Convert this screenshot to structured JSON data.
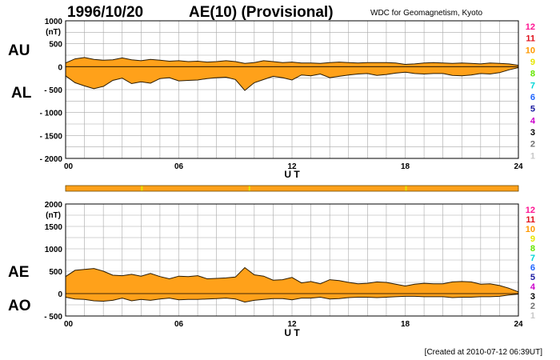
{
  "header": {
    "date": "1996/10/20",
    "title": "AE(10) (Provisional)",
    "source": "WDC for Geomagnetism, Kyoto"
  },
  "footer": {
    "created": "[Created at 2010-07-12 06:39UT]"
  },
  "colors": {
    "fill": "#ffa11a",
    "line": "#2a1a00",
    "grid": "#a8a8a8",
    "bar": "#ffa11a"
  },
  "legend_items": [
    {
      "label": "12",
      "color": "#ff1493"
    },
    {
      "label": "11",
      "color": "#e0101a"
    },
    {
      "label": "10",
      "color": "#ff9900"
    },
    {
      "label": "9",
      "color": "#e6e600"
    },
    {
      "label": "8",
      "color": "#66e600"
    },
    {
      "label": "7",
      "color": "#00d6d6"
    },
    {
      "label": "6",
      "color": "#1e64ff"
    },
    {
      "label": "5",
      "color": "#1a1aa0"
    },
    {
      "label": "4",
      "color": "#cc00cc"
    },
    {
      "label": "3",
      "color": "#000000"
    },
    {
      "label": "2",
      "color": "#707070"
    },
    {
      "label": "1",
      "color": "#c8c8c8"
    }
  ],
  "chart_data": [
    {
      "type": "area",
      "name": "AU/AL",
      "series_labels": [
        "AU",
        "AL"
      ],
      "ylabel": "(nT)",
      "xlabel": "U T",
      "xlim": [
        0,
        24
      ],
      "ylim": [
        -2000,
        1000
      ],
      "yticks": [
        1000,
        500,
        0,
        -500,
        -1000,
        -1500,
        -2000
      ],
      "ytick_labels": [
        "1000",
        "500",
        "0",
        "- 500",
        "- 1000",
        "- 1500",
        "- 2000"
      ],
      "xticks": [
        0,
        6,
        12,
        18,
        24
      ],
      "xtick_labels": [
        "00",
        "06",
        "12",
        "18",
        "24"
      ],
      "grid": true,
      "x": [
        0,
        0.5,
        1,
        1.5,
        2,
        2.5,
        3,
        3.5,
        4,
        4.5,
        5,
        5.5,
        6,
        6.5,
        7,
        7.5,
        8,
        8.5,
        9,
        9.5,
        10,
        10.5,
        11,
        11.5,
        12,
        12.5,
        13,
        13.5,
        14,
        14.5,
        15,
        15.5,
        16,
        16.5,
        17,
        17.5,
        18,
        18.5,
        19,
        19.5,
        20,
        20.5,
        21,
        21.5,
        22,
        22.5,
        23,
        23.5,
        24
      ],
      "upper": [
        80,
        170,
        200,
        160,
        140,
        150,
        190,
        150,
        130,
        160,
        140,
        120,
        130,
        110,
        120,
        100,
        110,
        130,
        110,
        70,
        90,
        130,
        110,
        90,
        100,
        80,
        80,
        70,
        90,
        100,
        90,
        80,
        90,
        90,
        90,
        80,
        50,
        60,
        80,
        90,
        80,
        70,
        80,
        70,
        60,
        80,
        70,
        60,
        30
      ],
      "lower": [
        -200,
        -350,
        -420,
        -480,
        -430,
        -300,
        -250,
        -370,
        -330,
        -360,
        -260,
        -240,
        -310,
        -300,
        -290,
        -260,
        -240,
        -230,
        -280,
        -520,
        -350,
        -280,
        -210,
        -240,
        -290,
        -180,
        -200,
        -160,
        -240,
        -210,
        -180,
        -160,
        -150,
        -190,
        -170,
        -140,
        -120,
        -150,
        -160,
        -150,
        -150,
        -190,
        -200,
        -180,
        -150,
        -160,
        -130,
        -70,
        -20
      ]
    },
    {
      "type": "area",
      "name": "AE/AO",
      "series_labels": [
        "AE",
        "AO"
      ],
      "ylabel": "(nT)",
      "xlabel": "U T",
      "xlim": [
        0,
        24
      ],
      "ylim": [
        -500,
        2000
      ],
      "yticks": [
        2000,
        1500,
        1000,
        500,
        0,
        -500
      ],
      "ytick_labels": [
        "2000",
        "1500",
        "1000",
        "500",
        "0",
        "- 500"
      ],
      "xticks": [
        0,
        6,
        12,
        18,
        24
      ],
      "xtick_labels": [
        "00",
        "06",
        "12",
        "18",
        "24"
      ],
      "grid": true,
      "x": [
        0,
        0.5,
        1,
        1.5,
        2,
        2.5,
        3,
        3.5,
        4,
        4.5,
        5,
        5.5,
        6,
        6.5,
        7,
        7.5,
        8,
        8.5,
        9,
        9.5,
        10,
        10.5,
        11,
        11.5,
        12,
        12.5,
        13,
        13.5,
        14,
        14.5,
        15,
        15.5,
        16,
        16.5,
        17,
        17.5,
        18,
        18.5,
        19,
        19.5,
        20,
        20.5,
        21,
        21.5,
        22,
        22.5,
        23,
        23.5,
        24
      ],
      "upper": [
        380,
        520,
        540,
        560,
        500,
        410,
        400,
        430,
        390,
        450,
        380,
        330,
        390,
        380,
        400,
        330,
        340,
        350,
        370,
        580,
        420,
        390,
        300,
        310,
        360,
        240,
        270,
        220,
        310,
        290,
        250,
        220,
        230,
        260,
        250,
        210,
        170,
        210,
        230,
        220,
        220,
        260,
        270,
        260,
        210,
        220,
        180,
        120,
        40
      ],
      "lower": [
        -80,
        -120,
        -130,
        -160,
        -170,
        -150,
        -100,
        -160,
        -130,
        -150,
        -120,
        -100,
        -140,
        -130,
        -130,
        -120,
        -110,
        -100,
        -120,
        -190,
        -150,
        -130,
        -110,
        -110,
        -140,
        -100,
        -100,
        -80,
        -120,
        -110,
        -90,
        -80,
        -80,
        -90,
        -80,
        -70,
        -60,
        -60,
        -70,
        -70,
        -70,
        -90,
        -80,
        -80,
        -70,
        -70,
        -60,
        -30,
        -10
      ]
    }
  ]
}
